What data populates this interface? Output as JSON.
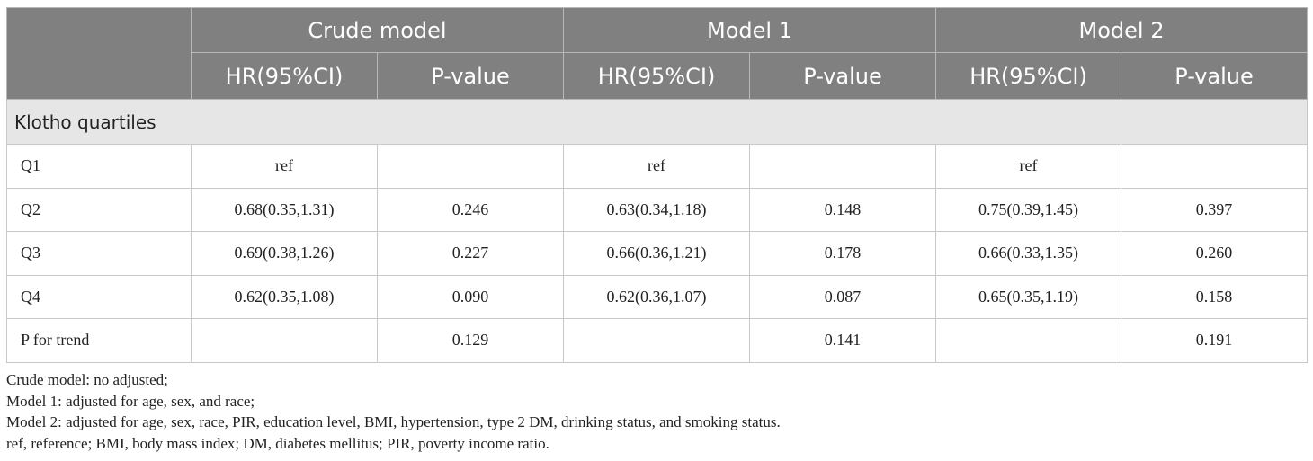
{
  "table": {
    "header": {
      "groups": [
        "Crude model",
        "Model 1",
        "Model 2"
      ],
      "subheaders": [
        "HR(95%CI)",
        "P-value",
        "HR(95%CI)",
        "P-value",
        "HR(95%CI)",
        "P-value"
      ]
    },
    "section": "Klotho quartiles",
    "rows": [
      [
        "Q1",
        "ref",
        null,
        "ref",
        null,
        "ref",
        null
      ],
      [
        "Q2",
        "0.68(0.35,1.31)",
        "0.246",
        "0.63(0.34,1.18)",
        "0.148",
        "0.75(0.39,1.45)",
        "0.397"
      ],
      [
        "Q3",
        "0.69(0.38,1.26)",
        "0.227",
        "0.66(0.36,1.21)",
        "0.178",
        "0.66(0.33,1.35)",
        "0.260"
      ],
      [
        "Q4",
        "0.62(0.35,1.08)",
        "0.090",
        "0.62(0.36,1.07)",
        "0.087",
        "0.65(0.35,1.19)",
        "0.158"
      ],
      [
        "P for trend",
        null,
        "0.129",
        null,
        "0.141",
        null,
        "0.191"
      ]
    ]
  },
  "footnotes": [
    "Crude model: no adjusted;",
    "Model 1: adjusted for age, sex, and race;",
    "Model 2: adjusted for age, sex, race, PIR, education level, BMI, hypertension, type 2 DM, drinking status, and smoking status.",
    "ref, reference; BMI, body mass index; DM, diabetes mellitus; PIR, poverty income ratio."
  ]
}
